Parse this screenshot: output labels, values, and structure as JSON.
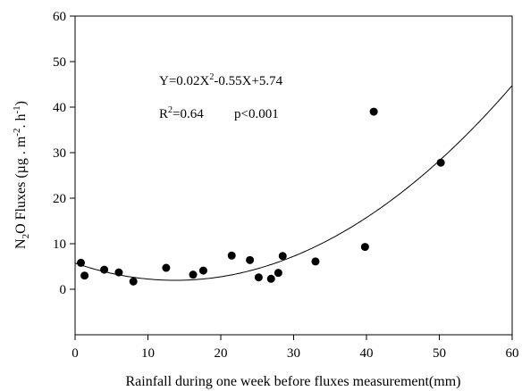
{
  "chart_data": {
    "type": "scatter",
    "title": "",
    "xlabel": "Rainfall during one week before fluxes measurement(mm)",
    "ylabel": {
      "prefix": "N",
      "sub": "2",
      "mid": "O Fluxes (µg . m",
      "sup1": "-2",
      "mid2": ". h",
      "sup2": "-1",
      "suffix": ")"
    },
    "xlim": [
      0,
      60
    ],
    "ylim": [
      -10,
      60
    ],
    "x_ticks": [
      0,
      10,
      20,
      30,
      40,
      50,
      60
    ],
    "y_ticks": [
      0,
      10,
      20,
      30,
      40,
      50,
      60
    ],
    "grid": false,
    "points": [
      {
        "x": 0.8,
        "y": 5.8
      },
      {
        "x": 1.3,
        "y": 3.0
      },
      {
        "x": 4.0,
        "y": 4.3
      },
      {
        "x": 6.0,
        "y": 3.7
      },
      {
        "x": 8.0,
        "y": 1.7
      },
      {
        "x": 12.5,
        "y": 4.7
      },
      {
        "x": 16.2,
        "y": 3.2
      },
      {
        "x": 17.6,
        "y": 4.1
      },
      {
        "x": 21.5,
        "y": 7.4
      },
      {
        "x": 24.0,
        "y": 6.4
      },
      {
        "x": 25.2,
        "y": 2.6
      },
      {
        "x": 26.9,
        "y": 2.3
      },
      {
        "x": 27.9,
        "y": 3.6
      },
      {
        "x": 28.5,
        "y": 7.3
      },
      {
        "x": 33.0,
        "y": 6.1
      },
      {
        "x": 39.8,
        "y": 9.3
      },
      {
        "x": 41.0,
        "y": 39.0
      },
      {
        "x": 50.2,
        "y": 27.8
      }
    ],
    "fit": {
      "a": 0.02,
      "b": -0.55,
      "c": 5.74
    },
    "annotations": {
      "equation": {
        "p1": "Y=0.02X",
        "sup": "2",
        "p2": "-0.55X+5.74"
      },
      "r2": {
        "p1": "R",
        "sup": "2",
        "p2": "=0.64"
      },
      "pvalue": "p<0.001"
    }
  }
}
